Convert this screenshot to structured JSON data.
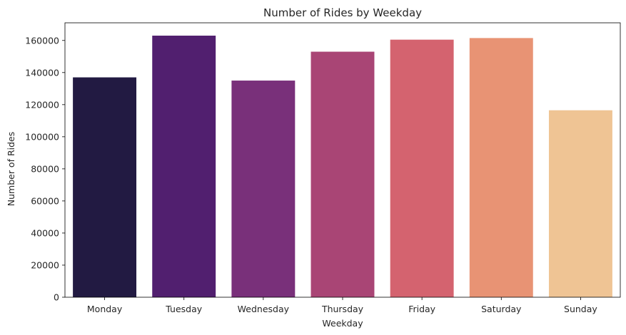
{
  "chart_data": {
    "type": "bar",
    "title": "Number of Rides by Weekday",
    "xlabel": "Weekday",
    "ylabel": "Number of Rides",
    "categories": [
      "Monday",
      "Tuesday",
      "Wednesday",
      "Thursday",
      "Friday",
      "Saturday",
      "Sunday"
    ],
    "values": [
      137000,
      163000,
      135000,
      153000,
      160500,
      161500,
      116500
    ],
    "colors": [
      "#221a42",
      "#511f6f",
      "#79307a",
      "#a94575",
      "#d4636f",
      "#e89374",
      "#efc494"
    ],
    "ylim": [
      0,
      171000
    ],
    "yticks": [
      0,
      20000,
      40000,
      60000,
      80000,
      100000,
      120000,
      140000,
      160000
    ],
    "ytick_labels": [
      "0",
      "20000",
      "40000",
      "60000",
      "80000",
      "100000",
      "120000",
      "140000",
      "160000"
    ],
    "grid": false,
    "legend": "none"
  }
}
